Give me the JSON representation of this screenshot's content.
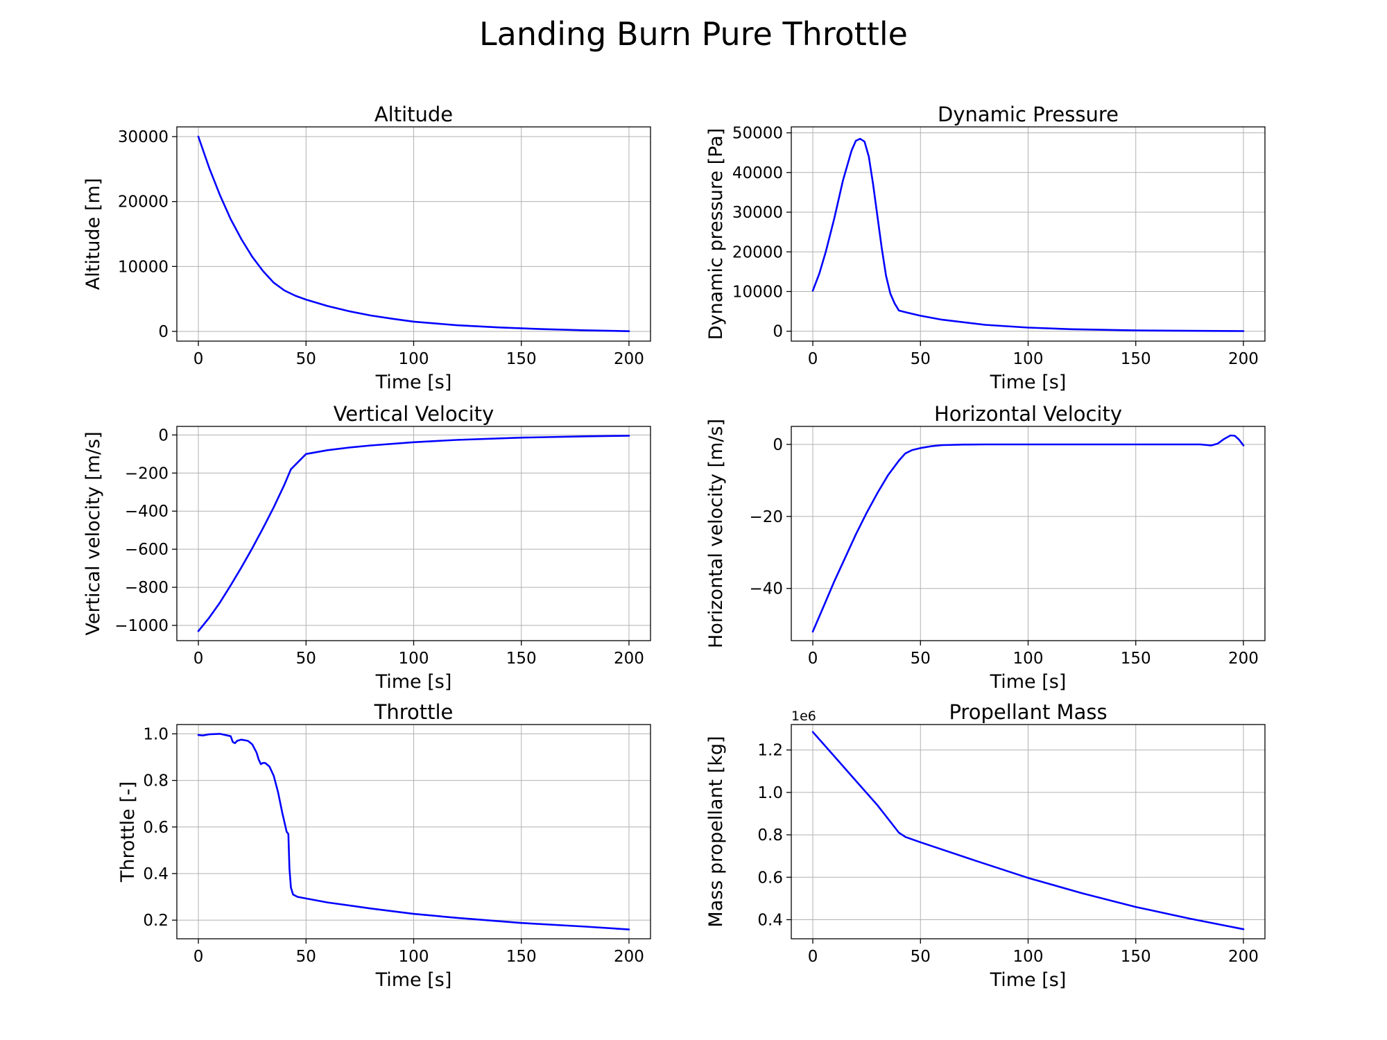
{
  "figure": {
    "title": "Landing Burn Pure Throttle",
    "line_color": "#0000ff",
    "grid_color": "#b0b0b0"
  },
  "chart_data": [
    {
      "type": "line",
      "title": "Altitude",
      "xlabel": "Time [s]",
      "ylabel": "Altitude [m]",
      "xlim": [
        -10,
        210
      ],
      "ylim": [
        -1500,
        31500
      ],
      "xticks": [
        0,
        50,
        100,
        150,
        200
      ],
      "yticks": [
        0,
        10000,
        20000,
        30000
      ],
      "ytick_labels": [
        "0",
        "10000",
        "20000",
        "30000"
      ],
      "grid": true,
      "series": [
        {
          "x": [
            0,
            5,
            10,
            15,
            20,
            25,
            30,
            35,
            40,
            45,
            50,
            60,
            70,
            80,
            90,
            100,
            120,
            140,
            160,
            180,
            200
          ],
          "y": [
            30000,
            25200,
            21000,
            17300,
            14200,
            11500,
            9300,
            7500,
            6300,
            5500,
            4900,
            3900,
            3100,
            2450,
            1950,
            1500,
            950,
            600,
            350,
            170,
            30
          ]
        }
      ]
    },
    {
      "type": "line",
      "title": "Dynamic Pressure",
      "xlabel": "Time [s]",
      "ylabel": "Dynamic pressure [Pa]",
      "xlim": [
        -10,
        210
      ],
      "ylim": [
        -2500,
        51500
      ],
      "xticks": [
        0,
        50,
        100,
        150,
        200
      ],
      "yticks": [
        0,
        10000,
        20000,
        30000,
        40000,
        50000
      ],
      "ytick_labels": [
        "0",
        "10000",
        "20000",
        "30000",
        "40000",
        "50000"
      ],
      "grid": true,
      "series": [
        {
          "x": [
            0,
            3,
            6,
            10,
            14,
            18,
            20,
            22,
            24,
            26,
            28,
            30,
            32,
            34,
            36,
            38,
            40,
            43,
            46,
            50,
            60,
            80,
            100,
            120,
            150,
            180,
            200
          ],
          "y": [
            10200,
            14500,
            20000,
            28500,
            38000,
            45500,
            48000,
            48500,
            47800,
            44000,
            37000,
            29000,
            21000,
            14000,
            9500,
            7000,
            5200,
            4800,
            4400,
            3900,
            2900,
            1600,
            900,
            500,
            200,
            80,
            40
          ]
        }
      ]
    },
    {
      "type": "line",
      "title": "Vertical Velocity",
      "xlabel": "Time [s]",
      "ylabel": "Vertical velocity [m/s]",
      "xlim": [
        -10,
        210
      ],
      "ylim": [
        -1080,
        45
      ],
      "xticks": [
        0,
        50,
        100,
        150,
        200
      ],
      "yticks": [
        -1000,
        -800,
        -600,
        -400,
        -200,
        0
      ],
      "ytick_labels": [
        "−1000",
        "−800",
        "−600",
        "−400",
        "−200",
        "0"
      ],
      "grid": true,
      "series": [
        {
          "x": [
            0,
            5,
            10,
            15,
            20,
            25,
            30,
            35,
            40,
            43,
            50,
            60,
            70,
            80,
            100,
            120,
            150,
            180,
            200
          ],
          "y": [
            -1030,
            -960,
            -880,
            -790,
            -695,
            -595,
            -490,
            -380,
            -260,
            -180,
            -100,
            -80,
            -66,
            -55,
            -38,
            -26,
            -14,
            -7,
            -4
          ]
        }
      ]
    },
    {
      "type": "line",
      "title": "Horizontal Velocity",
      "xlabel": "Time [s]",
      "ylabel": "Horizontal velocity [m/s]",
      "xlim": [
        -10,
        210
      ],
      "ylim": [
        -54.5,
        5
      ],
      "xticks": [
        0,
        50,
        100,
        150,
        200
      ],
      "yticks": [
        -40,
        -20,
        0
      ],
      "ytick_labels": [
        "−40",
        "−20",
        "0"
      ],
      "grid": true,
      "series": [
        {
          "x": [
            0,
            5,
            10,
            15,
            20,
            25,
            30,
            35,
            40,
            43,
            46,
            50,
            55,
            60,
            70,
            80,
            100,
            150,
            180,
            185,
            188,
            191,
            194,
            196,
            198,
            200
          ],
          "y": [
            -52,
            -45,
            -38,
            -31.5,
            -25,
            -19,
            -13.5,
            -8.5,
            -4.5,
            -2.5,
            -1.6,
            -1,
            -0.5,
            -0.2,
            -0.05,
            0,
            0,
            0,
            0,
            -0.3,
            0.2,
            1.5,
            2.5,
            2.4,
            1.3,
            -0.3
          ]
        }
      ]
    },
    {
      "type": "line",
      "title": "Throttle",
      "xlabel": "Time [s]",
      "ylabel": "Throttle [-]",
      "xlim": [
        -10,
        210
      ],
      "ylim": [
        0.12,
        1.04
      ],
      "xticks": [
        0,
        50,
        100,
        150,
        200
      ],
      "yticks": [
        0.2,
        0.4,
        0.6,
        0.8,
        1.0
      ],
      "ytick_labels": [
        "0.2",
        "0.4",
        "0.6",
        "0.8",
        "1.0"
      ],
      "grid": true,
      "series": [
        {
          "x": [
            0,
            2,
            5,
            10,
            15,
            16,
            17,
            18,
            20,
            23,
            25,
            27,
            28,
            29,
            30,
            31,
            33,
            35,
            37,
            39,
            41,
            41.8,
            42.3,
            43,
            44,
            46,
            50,
            60,
            80,
            100,
            120,
            150,
            180,
            200
          ],
          "y": [
            0.995,
            0.993,
            0.998,
            1.0,
            0.99,
            0.965,
            0.96,
            0.97,
            0.975,
            0.97,
            0.955,
            0.92,
            0.89,
            0.87,
            0.875,
            0.875,
            0.86,
            0.82,
            0.75,
            0.66,
            0.58,
            0.57,
            0.42,
            0.34,
            0.31,
            0.3,
            0.293,
            0.276,
            0.25,
            0.227,
            0.21,
            0.188,
            0.172,
            0.16
          ]
        }
      ]
    },
    {
      "type": "line",
      "title": "Propellant Mass",
      "xlabel": "Time [s]",
      "ylabel": "Mass propellant [kg]",
      "offset_text": "1e6",
      "xlim": [
        -10,
        210
      ],
      "ylim": [
        0.31,
        1.32
      ],
      "xticks": [
        0,
        50,
        100,
        150,
        200
      ],
      "yticks": [
        0.4,
        0.6,
        0.8,
        1.0,
        1.2
      ],
      "ytick_labels": [
        "0.4",
        "0.6",
        "0.8",
        "1.0",
        "1.2"
      ],
      "grid": true,
      "series": [
        {
          "x": [
            0,
            10,
            20,
            30,
            40,
            43,
            50,
            75,
            100,
            125,
            150,
            175,
            200
          ],
          "y": [
            1.285,
            1.17,
            1.055,
            0.94,
            0.81,
            0.79,
            0.765,
            0.68,
            0.597,
            0.525,
            0.46,
            0.405,
            0.355
          ]
        }
      ]
    }
  ]
}
